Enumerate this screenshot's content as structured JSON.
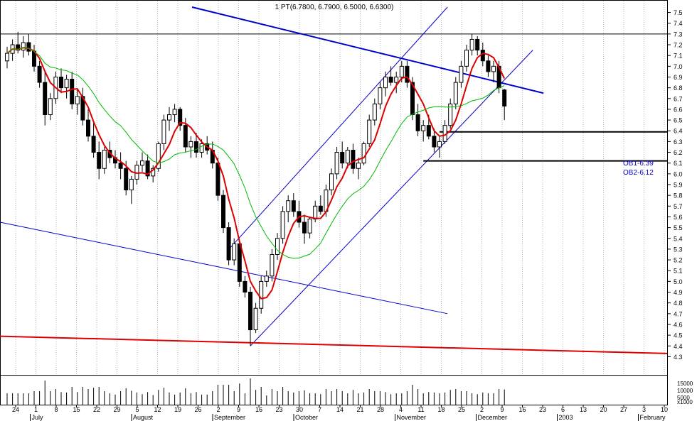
{
  "chart_data": {
    "type": "candlestick",
    "title": "1 PT(6.7800, 6.7900, 6.5000, 6.6300)",
    "y_ticks": [
      "7.5",
      "7.4",
      "7.3",
      "7.2",
      "7.1",
      "7.0",
      "6.9",
      "6.8",
      "6.7",
      "6.6",
      "6.5",
      "6.4",
      "6.3",
      "6.2",
      "6.1",
      "6.0",
      "5.9",
      "5.8",
      "5.7",
      "5.6",
      "5.5",
      "5.4",
      "5.3",
      "5.2",
      "5.1",
      "5.0",
      "4.9",
      "4.8",
      "4.7",
      "4.6",
      "4.5",
      "4.4",
      "4.3"
    ],
    "ylim": [
      4.25,
      7.55
    ],
    "volume_ticks": [
      "15000",
      "10000",
      "5000",
      "x1000"
    ],
    "volume_ylim": [
      0,
      20000
    ],
    "x_day_labels": [
      "24",
      "1",
      "8",
      "15",
      "22",
      "29",
      "5",
      "12",
      "19",
      "26",
      "2",
      "9",
      "16",
      "23",
      "30",
      "7",
      "14",
      "21",
      "28",
      "4",
      "11",
      "18",
      "25",
      "2",
      "9",
      "16",
      "23",
      "6",
      "13",
      "20",
      "27",
      "3",
      "10"
    ],
    "x_month_labels": [
      "July",
      "August",
      "September",
      "October",
      "November",
      "December",
      "2003",
      "February"
    ],
    "annotations": [
      "OB1-6.39",
      "OB2-6.12"
    ],
    "colors": {
      "candles": "#000000",
      "ma_fast": "#dd0000",
      "ma_slow": "#00bb00",
      "trendlines": "#0000cc",
      "support": "#dd0000",
      "grid": "#b8b8b8"
    },
    "candles": [
      [
        7.05,
        7.18,
        6.98,
        7.12
      ],
      [
        7.12,
        7.25,
        7.05,
        7.2
      ],
      [
        7.2,
        7.32,
        7.12,
        7.15
      ],
      [
        7.15,
        7.28,
        7.08,
        7.22
      ],
      [
        7.22,
        7.3,
        7.1,
        7.14
      ],
      [
        7.14,
        7.2,
        6.95,
        7.0
      ],
      [
        7.0,
        7.05,
        6.8,
        6.85
      ],
      [
        6.85,
        6.95,
        6.45,
        6.55
      ],
      [
        6.55,
        6.75,
        6.5,
        6.7
      ],
      [
        6.7,
        6.95,
        6.65,
        6.9
      ],
      [
        6.9,
        6.98,
        6.75,
        6.8
      ],
      [
        6.8,
        6.92,
        6.7,
        6.88
      ],
      [
        6.88,
        6.95,
        6.6,
        6.65
      ],
      [
        6.65,
        6.78,
        6.55,
        6.72
      ],
      [
        6.72,
        6.8,
        6.45,
        6.5
      ],
      [
        6.5,
        6.6,
        6.3,
        6.35
      ],
      [
        6.35,
        6.48,
        6.15,
        6.2
      ],
      [
        6.2,
        6.3,
        5.95,
        6.05
      ],
      [
        6.05,
        6.25,
        6.0,
        6.22
      ],
      [
        6.22,
        6.3,
        6.1,
        6.15
      ],
      [
        6.15,
        6.22,
        6.05,
        6.1
      ],
      [
        6.1,
        6.2,
        5.95,
        6.05
      ],
      [
        6.05,
        6.12,
        5.8,
        5.85
      ],
      [
        5.85,
        5.98,
        5.72,
        5.95
      ],
      [
        5.95,
        6.12,
        5.9,
        6.08
      ],
      [
        6.08,
        6.2,
        6.02,
        6.12
      ],
      [
        6.12,
        6.18,
        5.95,
        5.98
      ],
      [
        5.98,
        6.08,
        5.92,
        6.05
      ],
      [
        6.05,
        6.3,
        6.02,
        6.28
      ],
      [
        6.28,
        6.55,
        6.22,
        6.5
      ],
      [
        6.5,
        6.62,
        6.4,
        6.55
      ],
      [
        6.55,
        6.65,
        6.48,
        6.6
      ],
      [
        6.6,
        6.62,
        6.4,
        6.45
      ],
      [
        6.45,
        6.52,
        6.2,
        6.25
      ],
      [
        6.25,
        6.35,
        6.15,
        6.3
      ],
      [
        6.3,
        6.38,
        6.15,
        6.2
      ],
      [
        6.2,
        6.32,
        6.15,
        6.28
      ],
      [
        6.28,
        6.35,
        6.18,
        6.22
      ],
      [
        6.22,
        6.3,
        6.05,
        6.1
      ],
      [
        6.1,
        6.15,
        5.75,
        5.8
      ],
      [
        5.8,
        5.85,
        5.45,
        5.5
      ],
      [
        5.5,
        5.55,
        5.15,
        5.2
      ],
      [
        5.2,
        5.4,
        5.15,
        5.35
      ],
      [
        5.35,
        5.38,
        4.95,
        5.0
      ],
      [
        5.0,
        5.05,
        4.85,
        4.9
      ],
      [
        4.9,
        4.95,
        4.4,
        4.55
      ],
      [
        4.55,
        4.8,
        4.52,
        4.75
      ],
      [
        4.75,
        5.05,
        4.7,
        5.0
      ],
      [
        5.0,
        5.1,
        4.95,
        5.05
      ],
      [
        5.05,
        5.3,
        5.0,
        5.25
      ],
      [
        5.25,
        5.45,
        5.2,
        5.4
      ],
      [
        5.4,
        5.7,
        5.35,
        5.65
      ],
      [
        5.65,
        5.8,
        5.55,
        5.75
      ],
      [
        5.75,
        5.82,
        5.6,
        5.65
      ],
      [
        5.65,
        5.75,
        5.5,
        5.55
      ],
      [
        5.55,
        5.62,
        5.35,
        5.45
      ],
      [
        5.45,
        5.6,
        5.4,
        5.58
      ],
      [
        5.58,
        5.75,
        5.55,
        5.7
      ],
      [
        5.7,
        5.8,
        5.62,
        5.65
      ],
      [
        5.65,
        5.9,
        5.6,
        5.85
      ],
      [
        5.85,
        6.05,
        5.8,
        6.0
      ],
      [
        6.0,
        6.25,
        5.95,
        6.2
      ],
      [
        6.2,
        6.3,
        6.05,
        6.1
      ],
      [
        6.1,
        6.25,
        6.05,
        6.22
      ],
      [
        6.22,
        6.28,
        6.0,
        6.05
      ],
      [
        6.05,
        6.15,
        5.95,
        6.1
      ],
      [
        6.1,
        6.3,
        6.08,
        6.28
      ],
      [
        6.28,
        6.55,
        6.25,
        6.5
      ],
      [
        6.5,
        6.7,
        6.45,
        6.65
      ],
      [
        6.65,
        6.85,
        6.6,
        6.8
      ],
      [
        6.8,
        6.95,
        6.72,
        6.9
      ],
      [
        6.9,
        7.0,
        6.82,
        6.85
      ],
      [
        6.85,
        6.95,
        6.75,
        6.9
      ],
      [
        6.9,
        7.05,
        6.85,
        7.0
      ],
      [
        7.0,
        7.05,
        6.8,
        6.85
      ],
      [
        6.85,
        6.9,
        6.5,
        6.55
      ],
      [
        6.55,
        6.65,
        6.35,
        6.4
      ],
      [
        6.4,
        6.5,
        6.3,
        6.45
      ],
      [
        6.45,
        6.55,
        6.32,
        6.35
      ],
      [
        6.35,
        6.42,
        6.2,
        6.25
      ],
      [
        6.25,
        6.35,
        6.15,
        6.3
      ],
      [
        6.3,
        6.5,
        6.28,
        6.45
      ],
      [
        6.45,
        6.7,
        6.42,
        6.65
      ],
      [
        6.65,
        6.9,
        6.6,
        6.85
      ],
      [
        6.85,
        7.05,
        6.8,
        7.0
      ],
      [
        7.0,
        7.2,
        6.95,
        7.15
      ],
      [
        7.15,
        7.3,
        7.1,
        7.25
      ],
      [
        7.25,
        7.28,
        7.1,
        7.15
      ],
      [
        7.15,
        7.22,
        7.0,
        7.05
      ],
      [
        7.05,
        7.1,
        6.9,
        6.95
      ],
      [
        6.95,
        7.05,
        6.85,
        7.0
      ],
      [
        7.0,
        7.05,
        6.75,
        6.8
      ],
      [
        6.78,
        6.79,
        6.5,
        6.63
      ]
    ]
  }
}
